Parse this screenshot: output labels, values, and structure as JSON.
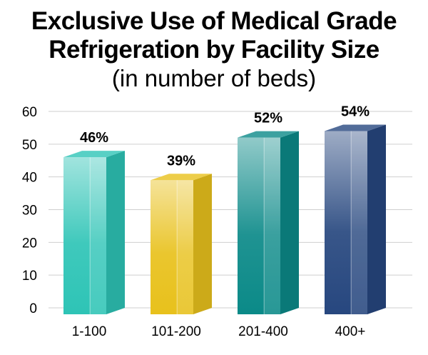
{
  "title_lines": [
    "Exclusive Use of Medical Grade",
    "Refrigeration by Facility Size"
  ],
  "subtitle": "(in number of beds)",
  "chart_data": {
    "type": "bar",
    "categories": [
      "1-100",
      "101-200",
      "201-400",
      "400+"
    ],
    "values": [
      46,
      39,
      52,
      54
    ],
    "data_labels": [
      "46%",
      "39%",
      "52%",
      "54%"
    ],
    "y_ticks": [
      0,
      10,
      20,
      30,
      40,
      50,
      60
    ],
    "ylim": [
      0,
      60
    ],
    "grid": true,
    "colors": [
      "#2ec4b6",
      "#e8c11c",
      "#0b8a88",
      "#27477f"
    ]
  }
}
